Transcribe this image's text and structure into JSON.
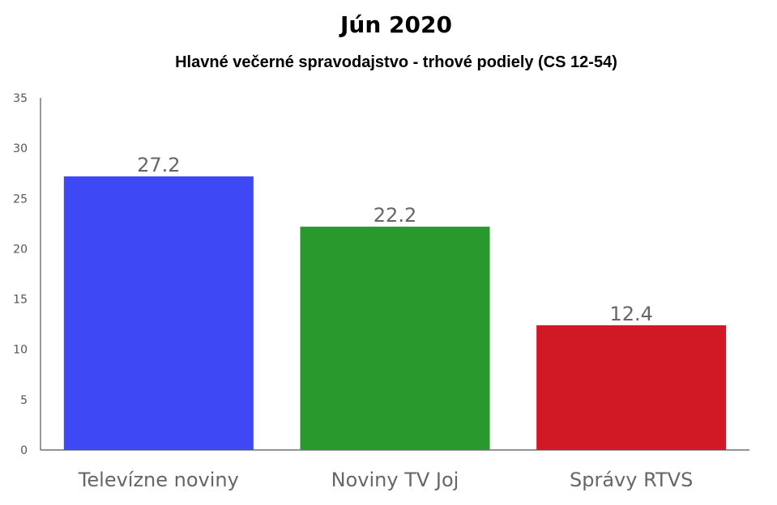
{
  "chart_data": {
    "type": "bar",
    "title": "Jún 2020",
    "subtitle": "Hlavné večerné spravodajstvo - trhové podiely (CS 12-54)",
    "categories": [
      "Televízne noviny",
      "Noviny TV Joj",
      "Správy RTVS"
    ],
    "values": [
      27.2,
      22.2,
      12.4
    ],
    "value_labels": [
      "27.2",
      "22.2",
      "12.4"
    ],
    "colors": [
      "#3f48f5",
      "#289a2d",
      "#d11925"
    ],
    "xlabel": "",
    "ylabel": "",
    "ylim": [
      0,
      35
    ],
    "yticks": [
      0,
      5,
      10,
      15,
      20,
      25,
      30,
      35
    ],
    "grid": false,
    "legend": "none"
  }
}
